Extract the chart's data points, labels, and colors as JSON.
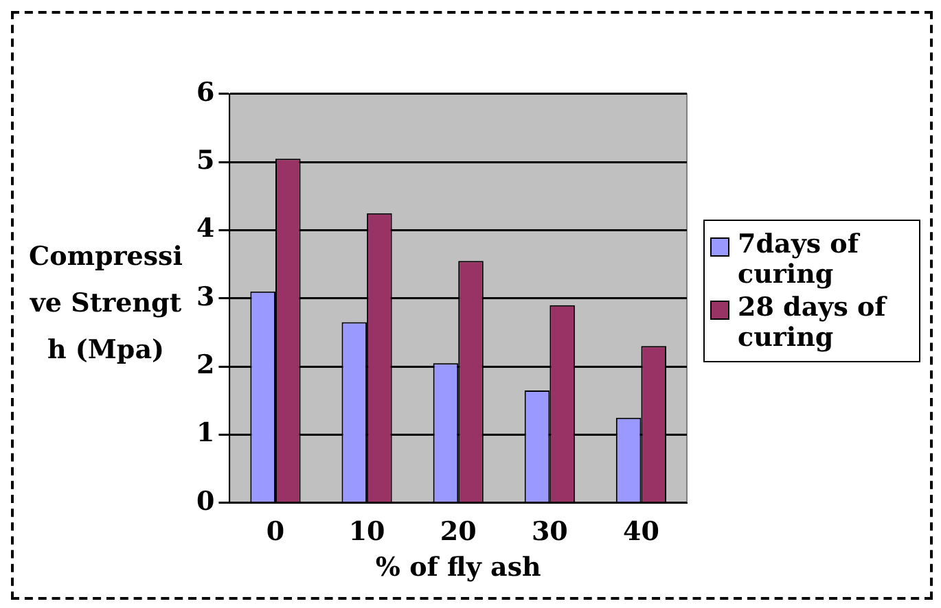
{
  "chart_data": {
    "type": "bar",
    "xlabel": "% of fly ash",
    "ylabel": "Compressive Strength (Mpa)",
    "categories": [
      "0",
      "10",
      "20",
      "30",
      "40"
    ],
    "series": [
      {
        "name": "7days of curing",
        "color": "#9999ff",
        "values": [
          3.1,
          2.65,
          2.05,
          1.65,
          1.25
        ]
      },
      {
        "name": "28 days of curing",
        "color": "#993366",
        "values": [
          5.05,
          4.25,
          3.55,
          2.9,
          2.3
        ]
      }
    ],
    "ylim": [
      0,
      6
    ],
    "yticks": [
      0,
      1,
      2,
      3,
      4,
      5,
      6
    ],
    "grid": "y",
    "legend": "right"
  }
}
